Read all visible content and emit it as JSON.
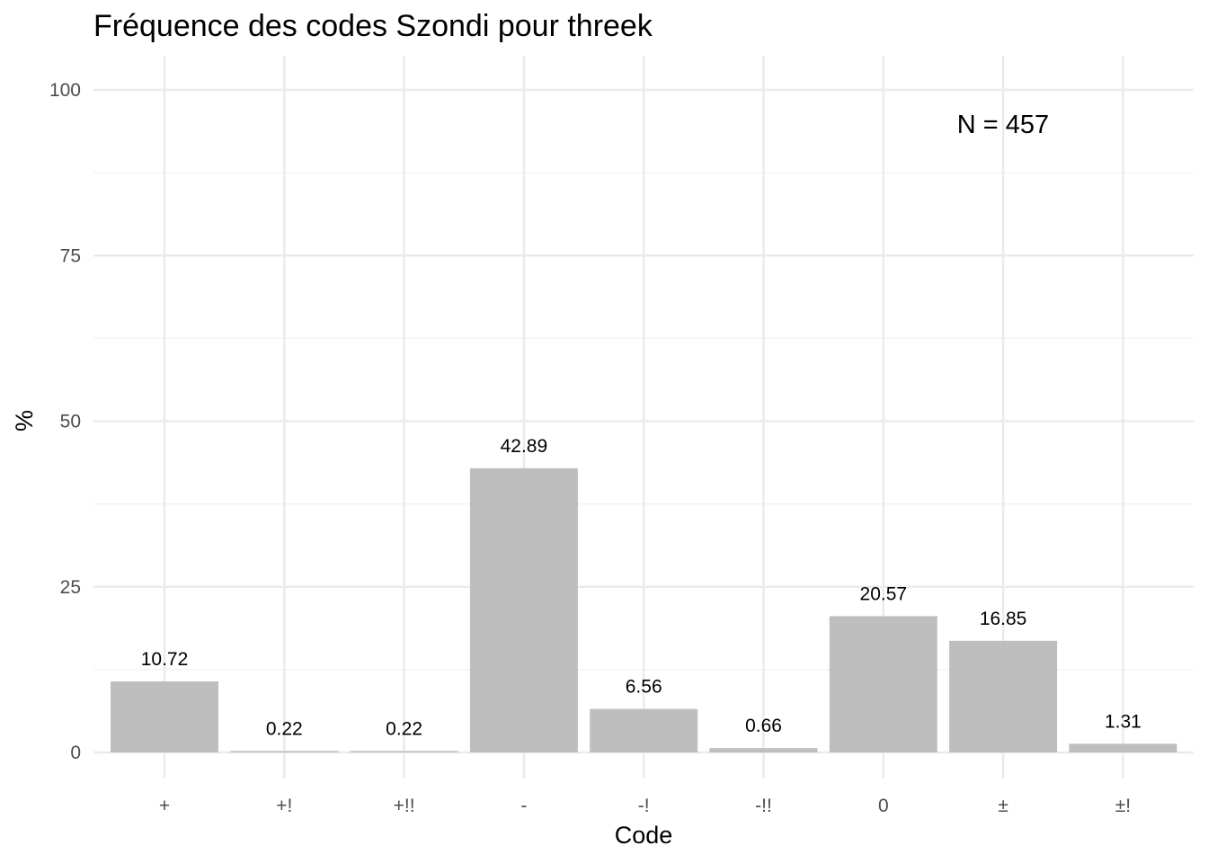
{
  "chart_data": {
    "type": "bar",
    "title": "Fréquence des codes Szondi pour threek",
    "xlabel": "Code",
    "ylabel": "%",
    "categories": [
      "+",
      "+!",
      "+!!",
      "-",
      "-!",
      "-!!",
      "0",
      "±",
      "±!"
    ],
    "values": [
      10.72,
      0.22,
      0.22,
      42.89,
      6.56,
      0.66,
      20.57,
      16.85,
      1.31
    ],
    "value_labels": [
      "10.72",
      "0.22",
      "0.22",
      "42.89",
      "6.56",
      "0.66",
      "20.57",
      "16.85",
      "1.31"
    ],
    "ylim": [
      0,
      100
    ],
    "yticks": [
      0,
      25,
      50,
      75,
      100
    ],
    "ytick_labels": [
      "0",
      "25",
      "50",
      "75",
      "100"
    ],
    "grid": true,
    "legend": "none",
    "annotation": "N = 457",
    "colors": {
      "bar": "#bebebe",
      "grid_major": "#ebebeb",
      "grid_minor": "#f3f3f3",
      "tick_text": "#4d4d4d"
    }
  }
}
